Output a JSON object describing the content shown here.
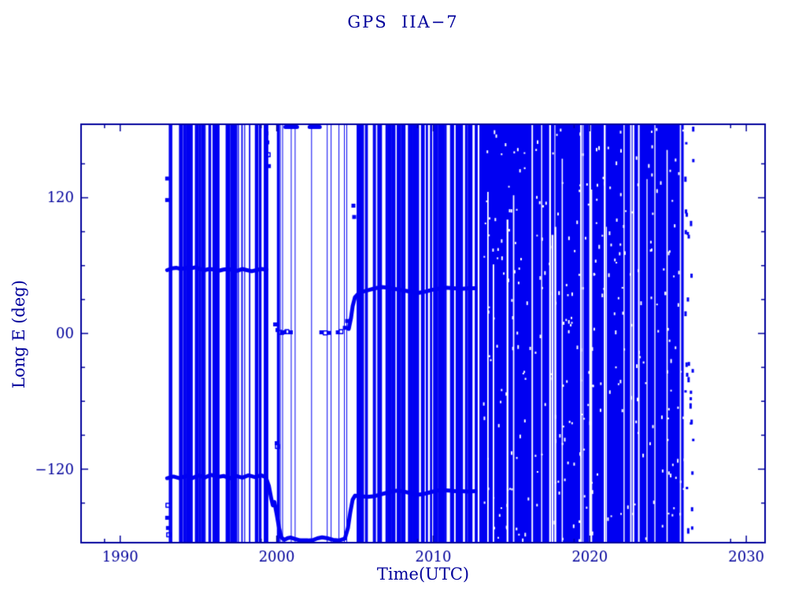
{
  "chart_data": {
    "type": "scatter",
    "title": "GPS  IIA−7",
    "xlabel": "Time(UTC)",
    "ylabel": "Long E (deg)",
    "xlim": [
      1987.5,
      2031.2
    ],
    "ylim": [
      -185,
      185
    ],
    "grid": false,
    "legend": "none",
    "colors": {
      "data": "#0000f2",
      "axis": "#00009b",
      "background": "#ffffff"
    },
    "x_axis": {
      "major_ticks": [
        {
          "value": 1990,
          "label": "1990"
        },
        {
          "value": 2000,
          "label": "2000"
        },
        {
          "value": 2010,
          "label": "2010"
        },
        {
          "value": 2020,
          "label": "2020"
        },
        {
          "value": 2030,
          "label": "2030"
        }
      ],
      "minor_tick_values": [
        1989,
        1999,
        2009,
        2019,
        2029
      ]
    },
    "y_axis": {
      "major_ticks": [
        {
          "value": 120,
          "label": "120"
        },
        {
          "value": 0,
          "label": "00"
        },
        {
          "value": -120,
          "label": "−120"
        }
      ],
      "minor_step": 30,
      "minor_range": [
        -150,
        150
      ]
    },
    "bands": [
      {
        "name": "upper-dwell-1993-1999-approx-55E",
        "line_width": 5,
        "points": [
          [
            1993.0,
            56
          ],
          [
            1993.3,
            57.5
          ],
          [
            1993.6,
            58
          ],
          [
            1993.9,
            57
          ],
          [
            1994.2,
            58
          ],
          [
            1994.5,
            57.5
          ],
          [
            1994.8,
            58.5
          ],
          [
            1995.1,
            57
          ],
          [
            1995.4,
            56
          ],
          [
            1995.7,
            57
          ],
          [
            1996.0,
            56.5
          ],
          [
            1996.3,
            55.5
          ],
          [
            1996.6,
            56.5
          ],
          [
            1996.9,
            57
          ],
          [
            1997.2,
            56
          ],
          [
            1997.5,
            55.5
          ],
          [
            1997.8,
            57
          ],
          [
            1998.1,
            56
          ],
          [
            1998.4,
            55
          ],
          [
            1998.7,
            56
          ],
          [
            1999.0,
            57
          ],
          [
            1999.35,
            56.5
          ]
        ]
      },
      {
        "name": "lower-dwell-track-1993-2012",
        "line_width": 5,
        "points": [
          [
            1993.0,
            -128
          ],
          [
            1993.4,
            -126.5
          ],
          [
            1993.8,
            -128
          ],
          [
            1994.2,
            -126
          ],
          [
            1994.6,
            -128
          ],
          [
            1995.0,
            -125.5
          ],
          [
            1995.4,
            -127.5
          ],
          [
            1995.8,
            -125
          ],
          [
            1996.2,
            -127
          ],
          [
            1996.6,
            -126
          ],
          [
            1997.0,
            -128
          ],
          [
            1997.4,
            -126
          ],
          [
            1997.8,
            -127.5
          ],
          [
            1998.2,
            -125.5
          ],
          [
            1998.6,
            -127
          ],
          [
            1999.0,
            -125.5
          ],
          [
            1999.3,
            -127
          ],
          [
            1999.5,
            -135
          ],
          [
            1999.65,
            -146
          ],
          [
            1999.75,
            -152
          ],
          [
            1999.85,
            -149
          ],
          [
            2000.0,
            -160
          ],
          [
            2000.15,
            -172
          ],
          [
            2000.3,
            -180.5
          ],
          [
            2000.5,
            -182.5
          ],
          [
            2000.7,
            -181
          ],
          [
            2000.9,
            -180.5
          ],
          [
            2001.1,
            -181.5
          ],
          [
            2001.5,
            -183
          ],
          [
            2002.0,
            -183
          ],
          [
            2002.3,
            -182.8
          ],
          [
            2002.6,
            -181.2
          ],
          [
            2002.9,
            -180.3
          ],
          [
            2003.2,
            -181
          ],
          [
            2003.6,
            -182.5
          ],
          [
            2004.0,
            -183
          ],
          [
            2004.35,
            -181.5
          ],
          [
            2004.55,
            -172
          ],
          [
            2004.7,
            -158
          ],
          [
            2004.85,
            -147
          ],
          [
            2005.0,
            -143.5
          ],
          [
            2005.4,
            -144
          ],
          [
            2005.8,
            -144.5
          ],
          [
            2006.2,
            -144
          ],
          [
            2006.6,
            -142.5
          ],
          [
            2007.0,
            -141
          ],
          [
            2007.4,
            -139.5
          ],
          [
            2007.8,
            -139
          ],
          [
            2008.2,
            -140
          ],
          [
            2008.6,
            -141.5
          ],
          [
            2009.0,
            -142.5
          ],
          [
            2009.4,
            -142
          ],
          [
            2009.8,
            -140.5
          ],
          [
            2010.2,
            -139
          ],
          [
            2010.6,
            -138.5
          ],
          [
            2011.0,
            -139
          ],
          [
            2011.4,
            -139.5
          ],
          [
            2011.8,
            -139.5
          ],
          [
            2012.2,
            -139.8
          ],
          [
            2012.7,
            -139.5
          ]
        ]
      },
      {
        "name": "upper-dwell-2005-2012-approx-40E",
        "line_width": 5,
        "points": [
          [
            2004.6,
            4
          ],
          [
            2004.75,
            14
          ],
          [
            2004.85,
            24
          ],
          [
            2005.0,
            32
          ],
          [
            2005.2,
            35
          ],
          [
            2005.5,
            37
          ],
          [
            2005.9,
            38.5
          ],
          [
            2006.3,
            40
          ],
          [
            2006.7,
            41
          ],
          [
            2007.1,
            40.5
          ],
          [
            2007.5,
            39.5
          ],
          [
            2007.9,
            38.5
          ],
          [
            2008.3,
            37.5
          ],
          [
            2008.7,
            36.5
          ],
          [
            2009.1,
            36
          ],
          [
            2009.5,
            37
          ],
          [
            2009.9,
            38.5
          ],
          [
            2010.3,
            39.5
          ],
          [
            2010.8,
            40.5
          ],
          [
            2011.3,
            40
          ],
          [
            2011.8,
            39.5
          ],
          [
            2012.3,
            40
          ],
          [
            2012.7,
            40
          ]
        ]
      }
    ],
    "marker_series": [
      {
        "name": "zero-longitude-dwell-markers-2000-2004",
        "marker_size": 5,
        "points": [
          [
            1999.9,
            8
          ],
          [
            2000.05,
            3
          ],
          [
            2000.2,
            1
          ],
          [
            2000.35,
            0.5
          ],
          [
            2000.5,
            1
          ],
          [
            2000.65,
            1.5
          ],
          [
            2000.9,
            1
          ],
          [
            2002.85,
            1
          ],
          [
            2003.1,
            0.5
          ],
          [
            2003.35,
            0.5
          ],
          [
            2003.9,
            1
          ],
          [
            2004.1,
            1.5
          ],
          [
            2004.35,
            5
          ],
          [
            2004.5,
            11
          ]
        ]
      },
      {
        "name": "stray-markers",
        "marker_size": 5,
        "points": [
          [
            1993.0,
            137
          ],
          [
            1993.0,
            118
          ],
          [
            1993.05,
            -152
          ],
          [
            1993.0,
            -163
          ],
          [
            1993.05,
            -172
          ],
          [
            1993.1,
            -178
          ],
          [
            1999.35,
            177
          ],
          [
            1999.4,
            169
          ],
          [
            1999.45,
            158
          ],
          [
            1999.5,
            148
          ],
          [
            2000.0,
            -97
          ],
          [
            2000.05,
            -100
          ],
          [
            2004.9,
            113
          ],
          [
            2004.95,
            103
          ]
        ]
      }
    ],
    "top_edge_segments": [
      {
        "name": "180E-dwell-top-edge",
        "deg": 182.5,
        "line_width": 5,
        "x_ranges": [
          [
            2000.55,
            2001.3
          ],
          [
            2002.1,
            2002.75
          ]
        ]
      }
    ],
    "drift_fields": [
      {
        "name": "drift-passes-1993-2000",
        "style": "lines",
        "x_start": 1992.85,
        "x_end": 2000.25,
        "count": 46,
        "min_width": 1,
        "max_width": 5
      },
      {
        "name": "sparse-passes-2000-2004",
        "style": "lines-explicit",
        "width": 1,
        "x_positions": [
          2000.2,
          2000.35,
          2000.9,
          2001.15,
          2002.2,
          2003.2,
          2003.45,
          2003.95,
          2004.3,
          2004.45
        ]
      },
      {
        "name": "drift-passes-2004-2013",
        "style": "lines",
        "x_start": 2004.6,
        "x_end": 2013.05,
        "count": 55,
        "min_width": 2,
        "max_width": 6
      },
      {
        "name": "dense-drift-2013-2026",
        "style": "solid",
        "x_start": 2013.0,
        "x_end": 2026.0,
        "white_gaps": 26,
        "gap_min_width": 1,
        "gap_max_width": 2.5,
        "speckles": 300
      },
      {
        "name": "tail-dotted-column-2026",
        "style": "dotted-column",
        "x_start": 2026.0,
        "x_end": 2026.55,
        "count": 30
      }
    ]
  }
}
